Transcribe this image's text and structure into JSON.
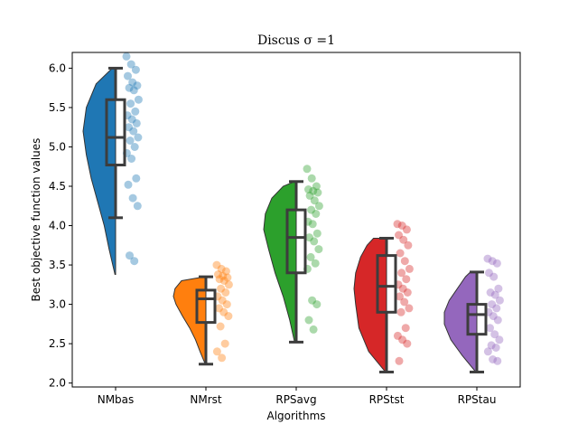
{
  "chart_data": {
    "type": "raincloud",
    "title": "Discus σ =1",
    "xlabel": "Algorithms",
    "ylabel": "Best objective function values",
    "ylim": [
      1.95,
      6.2
    ],
    "yticks": [
      "2.0",
      "2.5",
      "3.0",
      "3.5",
      "4.0",
      "4.5",
      "5.0",
      "5.5",
      "6.0"
    ],
    "categories": [
      "NMbas",
      "NMrst",
      "RPSavg",
      "RPStst",
      "RPStau"
    ],
    "grid": false,
    "series": [
      {
        "color": "#1f77b4",
        "box": {
          "whisker_low": 4.1,
          "q1": 4.77,
          "median": 5.12,
          "q3": 5.6,
          "whisker_high": 6.0
        },
        "density": {
          "y": [
            3.38,
            3.7,
            4.0,
            4.3,
            4.6,
            4.9,
            5.2,
            5.5,
            5.8,
            6.0
          ],
          "w": [
            0.02,
            0.2,
            0.35,
            0.55,
            0.75,
            0.9,
            1.0,
            0.9,
            0.6,
            0.1
          ]
        },
        "points": [
          6.15,
          6.05,
          5.98,
          5.9,
          5.82,
          5.78,
          5.75,
          5.72,
          5.6,
          5.55,
          5.45,
          5.4,
          5.35,
          5.3,
          5.25,
          5.2,
          5.12,
          5.08,
          5.0,
          4.92,
          4.85,
          4.6,
          4.52,
          4.35,
          4.25,
          3.62,
          3.55
        ]
      },
      {
        "color": "#ff7f0e",
        "box": {
          "whisker_low": 2.24,
          "q1": 2.77,
          "median": 3.07,
          "q3": 3.18,
          "whisker_high": 3.35
        },
        "density": {
          "y": [
            2.24,
            2.4,
            2.55,
            2.7,
            2.85,
            3.0,
            3.1,
            3.2,
            3.3,
            3.35
          ],
          "w": [
            0.02,
            0.18,
            0.32,
            0.5,
            0.72,
            0.92,
            1.0,
            0.95,
            0.75,
            0.05
          ]
        },
        "points": [
          3.5,
          3.45,
          3.42,
          3.38,
          3.36,
          3.34,
          3.32,
          3.3,
          3.25,
          3.2,
          3.15,
          3.1,
          3.05,
          3.0,
          2.95,
          2.9,
          2.85,
          2.72,
          2.5,
          2.4,
          2.32
        ]
      },
      {
        "color": "#2ca02c",
        "box": {
          "whisker_low": 2.52,
          "q1": 3.4,
          "median": 3.85,
          "q3": 4.2,
          "whisker_high": 4.56
        },
        "density": {
          "y": [
            2.52,
            2.8,
            3.1,
            3.4,
            3.7,
            3.95,
            4.15,
            4.35,
            4.5,
            4.56
          ],
          "w": [
            0.05,
            0.2,
            0.4,
            0.65,
            0.85,
            1.0,
            0.95,
            0.75,
            0.4,
            0.05
          ]
        },
        "points": [
          4.72,
          4.6,
          4.5,
          4.46,
          4.44,
          4.42,
          4.38,
          4.32,
          4.25,
          4.2,
          4.15,
          4.05,
          4.02,
          3.9,
          3.85,
          3.8,
          3.7,
          3.6,
          3.52,
          3.45,
          3.05,
          3.0,
          2.8,
          2.68
        ]
      },
      {
        "color": "#d62728",
        "box": {
          "whisker_low": 2.14,
          "q1": 2.9,
          "median": 3.23,
          "q3": 3.62,
          "whisker_high": 3.84
        },
        "density": {
          "y": [
            2.14,
            2.4,
            2.7,
            3.0,
            3.2,
            3.4,
            3.6,
            3.75,
            3.84
          ],
          "w": [
            0.03,
            0.55,
            0.85,
            0.95,
            1.0,
            0.95,
            0.8,
            0.6,
            0.4
          ]
        },
        "points": [
          4.02,
          4.0,
          3.95,
          3.88,
          3.82,
          3.75,
          3.65,
          3.55,
          3.45,
          3.4,
          3.32,
          3.25,
          3.2,
          3.15,
          3.1,
          3.03,
          2.95,
          2.9,
          2.7,
          2.6,
          2.55,
          2.5,
          2.28
        ]
      },
      {
        "color": "#9467bd",
        "box": {
          "whisker_low": 2.14,
          "q1": 2.62,
          "median": 2.87,
          "q3": 3.0,
          "whisker_high": 3.41
        },
        "density": {
          "y": [
            2.14,
            2.35,
            2.55,
            2.75,
            2.9,
            3.05,
            3.2,
            3.35,
            3.41
          ],
          "w": [
            0.03,
            0.45,
            0.8,
            1.0,
            1.0,
            0.85,
            0.6,
            0.35,
            0.2
          ]
        },
        "points": [
          3.58,
          3.55,
          3.52,
          3.4,
          3.35,
          3.2,
          3.15,
          3.12,
          3.05,
          3.0,
          2.95,
          2.9,
          2.85,
          2.8,
          2.7,
          2.62,
          2.55,
          2.48,
          2.45,
          2.4,
          2.3,
          2.28
        ]
      }
    ]
  }
}
